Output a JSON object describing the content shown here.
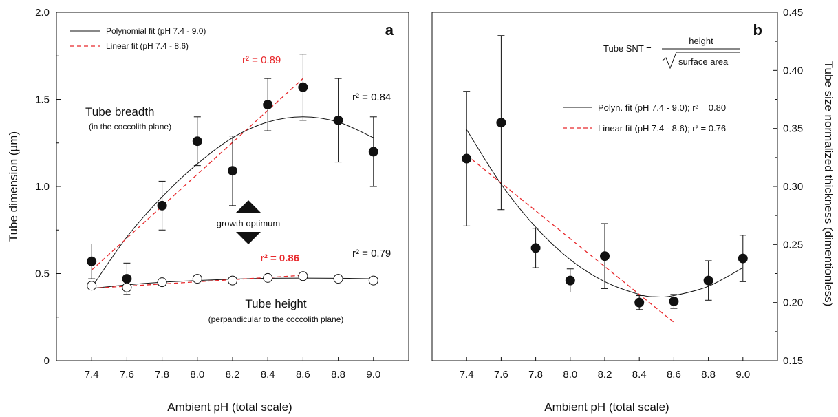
{
  "colors": {
    "black": "#111111",
    "red": "#e8282b"
  },
  "chart_data": [
    {
      "panel": "a",
      "type": "scatter",
      "panel_label": "a",
      "xlabel": "Ambient pH (total scale)",
      "ylabel": "Tube dimension (µm)",
      "xlim": [
        7.2,
        9.2
      ],
      "ylim": [
        0,
        2.0
      ],
      "x_ticks": [
        "7.4",
        "7.6",
        "7.8",
        "8.0",
        "8.2",
        "8.4",
        "8.6",
        "8.8",
        "9.0"
      ],
      "y_ticks": [
        "0",
        "0.5",
        "1.0",
        "1.5",
        "2.0"
      ],
      "legend": [
        {
          "label": "Polynomial fit (pH 7.4 - 9.0)",
          "style": "solid",
          "color": "#111111"
        },
        {
          "label": "Linear fit (pH 7.4 - 8.6)",
          "style": "dashed",
          "color": "#e8282b"
        }
      ],
      "series": [
        {
          "name": "Tube breadth",
          "note": "(in the coccolith plane)",
          "marker": "filled",
          "x": [
            7.4,
            7.6,
            7.8,
            8.0,
            8.2,
            8.4,
            8.6,
            8.8,
            9.0
          ],
          "y": [
            0.57,
            0.47,
            0.89,
            1.26,
            1.09,
            1.47,
            1.57,
            1.38,
            1.2
          ],
          "err": [
            0.1,
            0.09,
            0.14,
            0.14,
            0.2,
            0.15,
            0.19,
            0.24,
            0.2
          ]
        },
        {
          "name": "Tube height",
          "note": "(perpandicular to the coccolith plane)",
          "marker": "open",
          "x": [
            7.4,
            7.6,
            7.8,
            8.0,
            8.2,
            8.4,
            8.6,
            8.8,
            9.0
          ],
          "y": [
            0.43,
            0.42,
            0.45,
            0.47,
            0.46,
            0.475,
            0.485,
            0.47,
            0.46
          ],
          "err": [
            0,
            0,
            0,
            0,
            0,
            0,
            0,
            0,
            0
          ]
        }
      ],
      "fits": [
        {
          "style": "solid",
          "color": "#111111",
          "x": [
            7.4,
            7.6,
            7.8,
            8.0,
            8.2,
            8.4,
            8.6,
            8.8,
            9.0
          ],
          "y": [
            0.42,
            0.71,
            0.94,
            1.13,
            1.28,
            1.37,
            1.4,
            1.37,
            1.28
          ]
        },
        {
          "style": "dashed",
          "color": "#e8282b",
          "x": [
            7.4,
            8.6
          ],
          "y": [
            0.52,
            1.62
          ]
        },
        {
          "style": "solid",
          "color": "#111111",
          "x": [
            7.4,
            7.6,
            7.8,
            8.0,
            8.2,
            8.4,
            8.6,
            8.8,
            9.0
          ],
          "y": [
            0.415,
            0.435,
            0.45,
            0.46,
            0.468,
            0.473,
            0.474,
            0.473,
            0.47
          ]
        },
        {
          "style": "dashed",
          "color": "#e8282b",
          "x": [
            7.4,
            8.6
          ],
          "y": [
            0.415,
            0.49
          ]
        }
      ],
      "annotations": {
        "breadth_title": "Tube breadth",
        "breadth_note": "(in the coccolith plane)",
        "height_title": "Tube height",
        "height_note": "(perpandicular to the coccolith plane)",
        "optimum": "growth optimum",
        "r2_linear_breadth": "r² = 0.89",
        "r2_poly_breadth": "r² = 0.84",
        "r2_linear_height": "r² = 0.86",
        "r2_poly_height": "r² = 0.79"
      }
    },
    {
      "panel": "b",
      "type": "scatter",
      "panel_label": "b",
      "xlabel": "Ambient pH (total scale)",
      "ylabel": "Tube size normalized thickness (dimentionless)",
      "xlim": [
        7.2,
        9.2
      ],
      "ylim": [
        0.15,
        0.45
      ],
      "x_ticks": [
        "7.4",
        "7.6",
        "7.8",
        "8.0",
        "8.2",
        "8.4",
        "8.6",
        "8.8",
        "9.0"
      ],
      "y_ticks": [
        "0.15",
        "0.20",
        "0.25",
        "0.30",
        "0.35",
        "0.40",
        "0.45"
      ],
      "legend": [
        {
          "label": "Polyn. fit (pH 7.4 - 9.0); r² = 0.80",
          "style": "solid",
          "color": "#111111"
        },
        {
          "label": "Linear fit (pH 7.4 - 8.6); r² = 0.76",
          "style": "dashed",
          "color": "#e8282b"
        }
      ],
      "formula": {
        "lhs": "Tube SNT =",
        "numerator": "height",
        "denominator": "surface area"
      },
      "series": [
        {
          "name": "SNT",
          "marker": "filled",
          "x": [
            7.4,
            7.6,
            7.8,
            8.0,
            8.2,
            8.4,
            8.6,
            8.8,
            9.0
          ],
          "y": [
            0.324,
            0.355,
            0.247,
            0.219,
            0.24,
            0.2,
            0.201,
            0.219,
            0.238
          ],
          "err": [
            0.058,
            0.075,
            0.017,
            0.01,
            0.028,
            0.006,
            0.006,
            0.017,
            0.02
          ]
        }
      ],
      "fits": [
        {
          "style": "solid",
          "color": "#111111",
          "x": [
            7.4,
            7.6,
            7.8,
            8.0,
            8.2,
            8.4,
            8.5,
            8.6,
            8.8,
            9.0
          ],
          "y": [
            0.349,
            0.302,
            0.265,
            0.237,
            0.218,
            0.207,
            0.205,
            0.206,
            0.214,
            0.23
          ]
        },
        {
          "style": "dashed",
          "color": "#e8282b",
          "x": [
            7.4,
            8.6
          ],
          "y": [
            0.327,
            0.183
          ]
        }
      ]
    }
  ]
}
